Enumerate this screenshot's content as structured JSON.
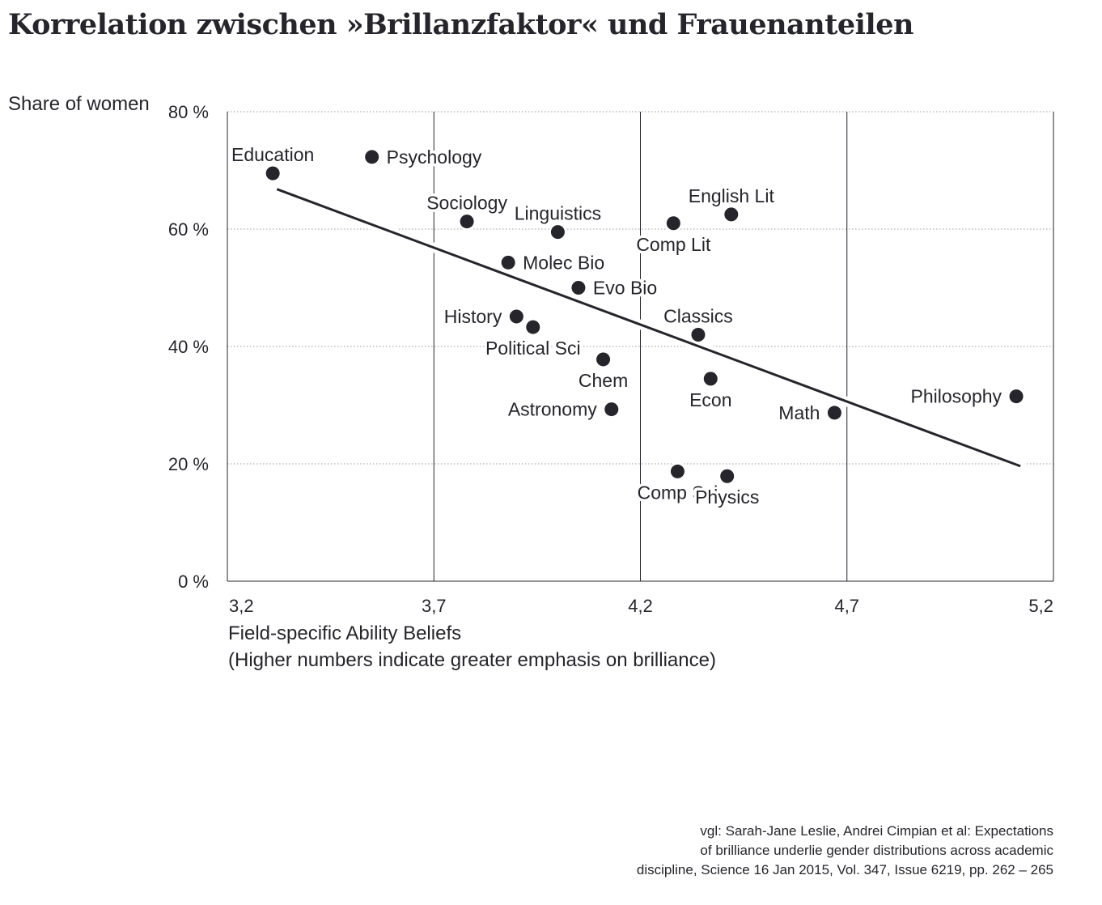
{
  "title": "Korrelation zwischen »Brillanzfaktor« und Frauenanteilen",
  "source_lines": [
    "vgl: Sarah-Jane Leslie, Andrei Cimpian et al: Expectations",
    "of brilliance underlie gender distributions across academic",
    "discipline, Science 16 Jan 2015, Vol. 347, Issue 6219, pp. 262 – 265"
  ],
  "colors": {
    "ink": "#25252b",
    "grid": "#9a9a9a"
  },
  "chart_data": {
    "type": "scatter",
    "ylabel": "Share of women",
    "xlabel_lines": [
      "Field-specific Ability Beliefs",
      "(Higher numbers indicate greater emphasis on brilliance)"
    ],
    "xlim": [
      3.2,
      5.2
    ],
    "ylim": [
      0,
      80
    ],
    "x_ticks": [
      3.2,
      3.7,
      4.2,
      4.7,
      5.2
    ],
    "x_tick_labels": [
      "3,2",
      "3,7",
      "4,2",
      "4,7",
      "5,2"
    ],
    "y_ticks": [
      0,
      20,
      40,
      60,
      80
    ],
    "y_tick_labels": [
      "0 %",
      "20 %",
      "40 %",
      "60 %",
      "80 %"
    ],
    "grid": true,
    "points": [
      {
        "label": "Education",
        "x": 3.31,
        "y": 69.5,
        "label_pos": "above"
      },
      {
        "label": "Psychology",
        "x": 3.55,
        "y": 72.3,
        "label_pos": "right"
      },
      {
        "label": "Sociology",
        "x": 3.78,
        "y": 61.3,
        "label_pos": "above"
      },
      {
        "label": "Linguistics",
        "x": 4.0,
        "y": 59.5,
        "label_pos": "above"
      },
      {
        "label": "Comp Lit",
        "x": 4.28,
        "y": 61.0,
        "label_pos": "below"
      },
      {
        "label": "English Lit",
        "x": 4.42,
        "y": 62.5,
        "label_pos": "above"
      },
      {
        "label": "Molec Bio",
        "x": 3.88,
        "y": 54.3,
        "label_pos": "right"
      },
      {
        "label": "Evo Bio",
        "x": 4.05,
        "y": 50.0,
        "label_pos": "right"
      },
      {
        "label": "History",
        "x": 3.9,
        "y": 45.1,
        "label_pos": "left"
      },
      {
        "label": "Political Sci",
        "x": 3.94,
        "y": 43.3,
        "label_pos": "below"
      },
      {
        "label": "Classics",
        "x": 4.34,
        "y": 42.0,
        "label_pos": "above"
      },
      {
        "label": "Chem",
        "x": 4.11,
        "y": 37.8,
        "label_pos": "below"
      },
      {
        "label": "Econ",
        "x": 4.37,
        "y": 34.5,
        "label_pos": "below"
      },
      {
        "label": "Astronomy",
        "x": 4.13,
        "y": 29.3,
        "label_pos": "left"
      },
      {
        "label": "Math",
        "x": 4.67,
        "y": 28.7,
        "label_pos": "left"
      },
      {
        "label": "Philosophy",
        "x": 5.11,
        "y": 31.5,
        "label_pos": "left"
      },
      {
        "label": "Comp Sci",
        "x": 4.29,
        "y": 18.7,
        "label_pos": "below"
      },
      {
        "label": "Physics",
        "x": 4.41,
        "y": 17.9,
        "label_pos": "below"
      }
    ],
    "trendline": {
      "x": [
        3.32,
        5.12
      ],
      "y": [
        66.8,
        19.6
      ]
    }
  }
}
